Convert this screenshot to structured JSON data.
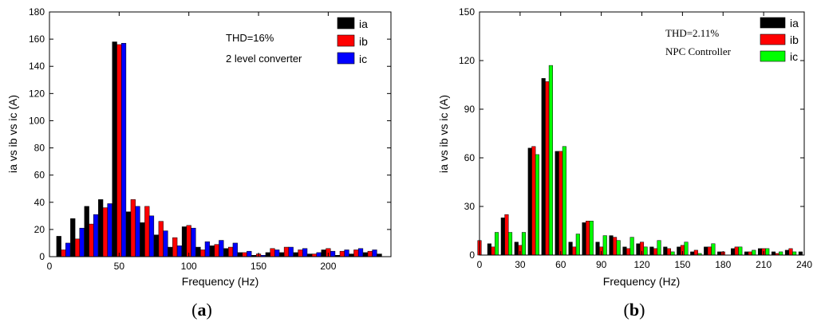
{
  "colors": {
    "ia": "#000000",
    "ib": "#ff0000",
    "ic_a": "#0000ff",
    "ic_b": "#00ff00"
  },
  "chart_data": [
    {
      "type": "bar",
      "panel_label": "(a)",
      "panel_letter": "a",
      "xlabel": "Frequency (Hz)",
      "ylabel": "ia vs ib vs ic (A)",
      "xlim": [
        0,
        245
      ],
      "ylim": [
        0,
        180
      ],
      "xticks": [
        0,
        50,
        100,
        150,
        200
      ],
      "yticks": [
        0,
        20,
        40,
        60,
        80,
        100,
        120,
        140,
        160,
        180
      ],
      "annotations": [
        "THD=16%",
        "2 level converter"
      ],
      "legend_position": "top-right",
      "x": [
        10,
        20,
        30,
        40,
        50,
        60,
        70,
        80,
        90,
        100,
        110,
        120,
        130,
        140,
        150,
        160,
        170,
        180,
        190,
        200,
        210,
        220,
        230,
        240
      ],
      "series": [
        {
          "name": "ia",
          "values": [
            15,
            28,
            37,
            42,
            158,
            33,
            25,
            16,
            7,
            22,
            7,
            8,
            6,
            3,
            1,
            3,
            3,
            3,
            2,
            5,
            1,
            2,
            3,
            2
          ]
        },
        {
          "name": "ib",
          "values": [
            5,
            13,
            24,
            36,
            156,
            42,
            37,
            26,
            14,
            23,
            5,
            9,
            7,
            3,
            2,
            6,
            7,
            5,
            2,
            6,
            4,
            5,
            4,
            0
          ]
        },
        {
          "name": "ic",
          "values": [
            10,
            21,
            31,
            39,
            157,
            37,
            30,
            19,
            8,
            21,
            11,
            12,
            10,
            4,
            1,
            5,
            7,
            6,
            3,
            4,
            5,
            6,
            5,
            0
          ]
        }
      ]
    },
    {
      "type": "bar",
      "panel_label": "(b)",
      "panel_letter": "b",
      "xlabel": "Frequency (Hz)",
      "ylabel": "ia vs ib vs ic (A)",
      "xlim": [
        0,
        240
      ],
      "ylim": [
        0,
        150
      ],
      "xticks": [
        0,
        30,
        60,
        90,
        120,
        150,
        180,
        210,
        240
      ],
      "yticks": [
        0,
        30,
        60,
        90,
        120,
        150
      ],
      "annotations": [
        "THD=2.11%",
        "NPC Controller"
      ],
      "legend_position": "top-right",
      "x": [
        0,
        10,
        20,
        30,
        40,
        50,
        60,
        70,
        80,
        90,
        100,
        110,
        120,
        130,
        140,
        150,
        160,
        170,
        180,
        190,
        200,
        210,
        220,
        230,
        240
      ],
      "series": [
        {
          "name": "ia",
          "values": [
            0,
            7,
            23,
            8,
            66,
            109,
            64,
            8,
            20,
            8,
            12,
            5,
            7,
            5,
            5,
            5,
            2,
            5,
            2,
            4,
            2,
            4,
            2,
            3,
            2
          ]
        },
        {
          "name": "ib",
          "values": [
            9,
            5,
            25,
            6,
            67,
            107,
            64,
            5,
            21,
            5,
            11,
            4,
            8,
            4,
            4,
            6,
            3,
            5,
            2,
            5,
            2,
            4,
            1,
            4,
            0
          ]
        },
        {
          "name": "ic",
          "values": [
            0,
            14,
            14,
            14,
            62,
            117,
            67,
            13,
            21,
            12,
            9,
            11,
            5,
            9,
            2,
            8,
            1,
            7,
            0,
            5,
            3,
            4,
            2,
            2,
            0
          ]
        }
      ]
    }
  ]
}
